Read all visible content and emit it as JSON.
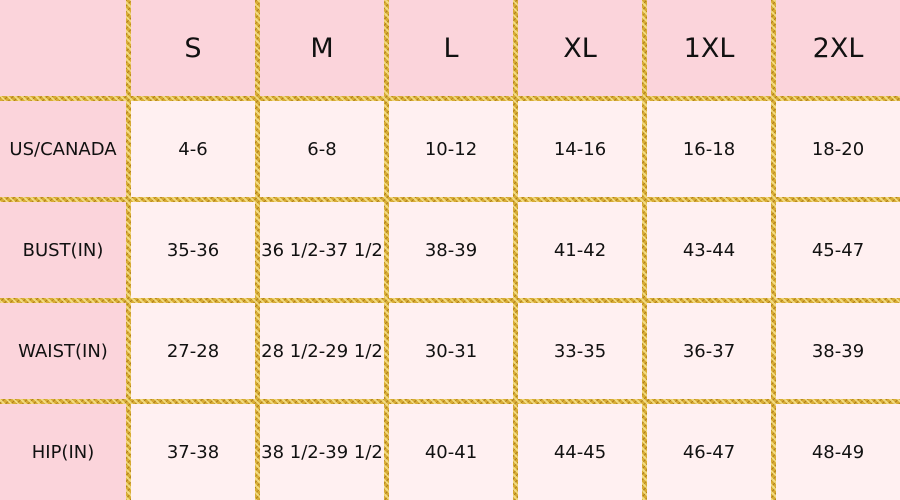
{
  "table": {
    "sizes": [
      "S",
      "M",
      "L",
      "XL",
      "1XL",
      "2XL"
    ],
    "rows": [
      {
        "label": "US/CANADA",
        "values": [
          "4-6",
          "6-8",
          "10-12",
          "14-16",
          "16-18",
          "18-20"
        ]
      },
      {
        "label": "BUST(IN)",
        "values": [
          "35-36",
          "36 1/2-37 1/2",
          "38-39",
          "41-42",
          "43-44",
          "45-47"
        ]
      },
      {
        "label": "WAIST(IN)",
        "values": [
          "27-28",
          "28 1/2-29 1/2",
          "30-31",
          "33-35",
          "36-37",
          "38-39"
        ]
      },
      {
        "label": "HIP(IN)",
        "values": [
          "37-38",
          "38 1/2-39 1/2",
          "40-41",
          "44-45",
          "46-47",
          "48-49"
        ]
      }
    ]
  }
}
